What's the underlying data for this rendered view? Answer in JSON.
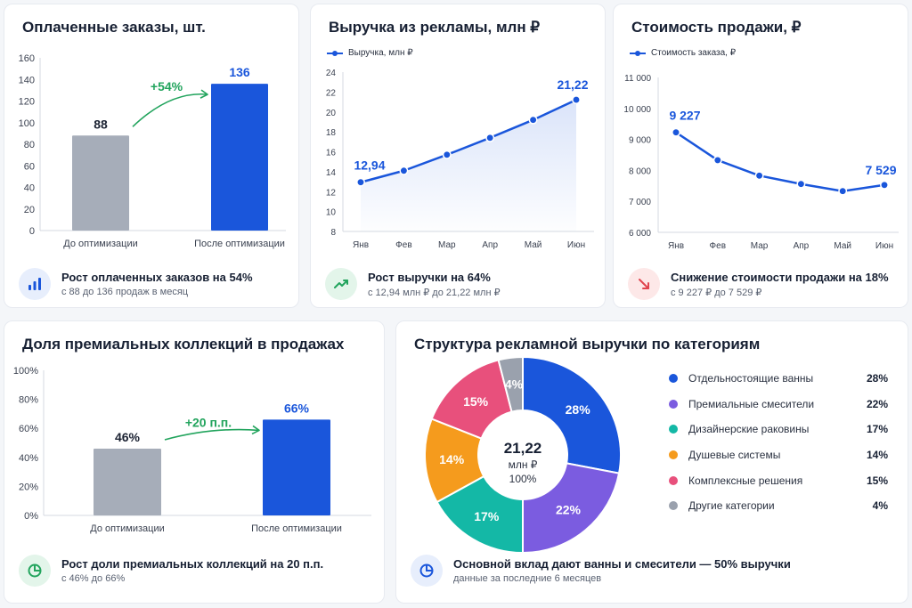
{
  "colors": {
    "blue": "#1a56db",
    "gray": "#a6adb9",
    "green": "#22a45d",
    "red": "#e0454f"
  },
  "cards": {
    "orders": {
      "title": "Оплаченные заказы, шт.",
      "growth": "+54%",
      "footer": {
        "icon": "bar-chart-icon",
        "title": "Рост оплаченных заказов на 54%",
        "subtitle": "с 88 до 136 продаж в месяц"
      }
    },
    "revenue": {
      "title": "Выручка из рекламы, млн ₽",
      "legend": "Выручка, млн ₽",
      "footer": {
        "icon": "trend-up-icon",
        "title": "Рост выручки на 64%",
        "subtitle": "с 12,94 млн ₽ до 21,22 млн ₽"
      }
    },
    "cost": {
      "title": "Стоимость продажи, ₽",
      "legend": "Стоимость заказа, ₽",
      "footer": {
        "icon": "trend-down-icon",
        "title": "Снижение стоимости продажи на 18%",
        "subtitle": "с 9 227 ₽ до 7 529 ₽"
      }
    },
    "premium": {
      "title": "Доля премиальных коллекций в продажах",
      "growth": "+20 п.п.",
      "footer": {
        "icon": "pie-chart-icon",
        "title": "Рост доли премиальных коллекций на 20 п.п.",
        "subtitle": "с 46% до 66%"
      }
    },
    "structure": {
      "title": "Структура рекламной выручки по категориям",
      "center_value": "21,22",
      "center_unit": "млн ₽",
      "center_pct": "100%",
      "footer": {
        "icon": "pie-chart-icon",
        "title": "Основной вклад дают ванны и смесители — 50% выручки",
        "subtitle": "данные за последние 6 месяцев"
      }
    }
  },
  "chart_data": [
    {
      "type": "bar",
      "categories": [
        "До оптимизации",
        "После оптимизации"
      ],
      "values": [
        88,
        136
      ],
      "labels": [
        "88",
        "136"
      ],
      "ylim": [
        0,
        160
      ],
      "yticks": [
        "0",
        "20",
        "40",
        "60",
        "80",
        "100",
        "120",
        "140",
        "160"
      ],
      "colors": [
        "#a6adb9",
        "#1a56db"
      ]
    },
    {
      "type": "line",
      "x": [
        "Янв",
        "Фев",
        "Мар",
        "Апр",
        "Май",
        "Июн"
      ],
      "series": [
        {
          "name": "Выручка, млн ₽",
          "values": [
            12.94,
            14.1,
            15.7,
            17.4,
            19.2,
            21.22
          ]
        }
      ],
      "point_labels": {
        "first": "12,94",
        "last": "21,22"
      },
      "ylim": [
        8,
        24
      ],
      "yticks": [
        "8",
        "10",
        "12",
        "14",
        "16",
        "18",
        "20",
        "22",
        "24"
      ],
      "area": true
    },
    {
      "type": "line",
      "x": [
        "Янв",
        "Фев",
        "Мар",
        "Апр",
        "Май",
        "Июн"
      ],
      "series": [
        {
          "name": "Стоимость заказа, ₽",
          "values": [
            9227,
            8330,
            7830,
            7560,
            7330,
            7529
          ]
        }
      ],
      "point_labels": {
        "first": "9 227",
        "last": "7 529"
      },
      "ylim": [
        6000,
        11000
      ],
      "yticks": [
        "6 000",
        "7 000",
        "8 000",
        "9 000",
        "10 000",
        "11 000"
      ]
    },
    {
      "type": "bar",
      "categories": [
        "До оптимизации",
        "После оптимизации"
      ],
      "values": [
        46,
        66
      ],
      "labels": [
        "46%",
        "66%"
      ],
      "ylim": [
        0,
        100
      ],
      "yticks": [
        "0%",
        "20%",
        "40%",
        "60%",
        "80%",
        "100%"
      ],
      "colors": [
        "#a6adb9",
        "#1a56db"
      ]
    },
    {
      "type": "pie",
      "categories": [
        "Отдельностоящие ванны",
        "Премиальные смесители",
        "Дизайнерские раковины",
        "Душевые системы",
        "Комплексные решения",
        "Другие категории"
      ],
      "values": [
        28,
        22,
        17,
        14,
        15,
        4
      ],
      "labels": [
        "28%",
        "22%",
        "17%",
        "14%",
        "15%",
        "4%"
      ],
      "colors": [
        "#1a56db",
        "#7b5ce0",
        "#14b8a6",
        "#f59b1d",
        "#e8507c",
        "#9aa1ad"
      ]
    }
  ]
}
